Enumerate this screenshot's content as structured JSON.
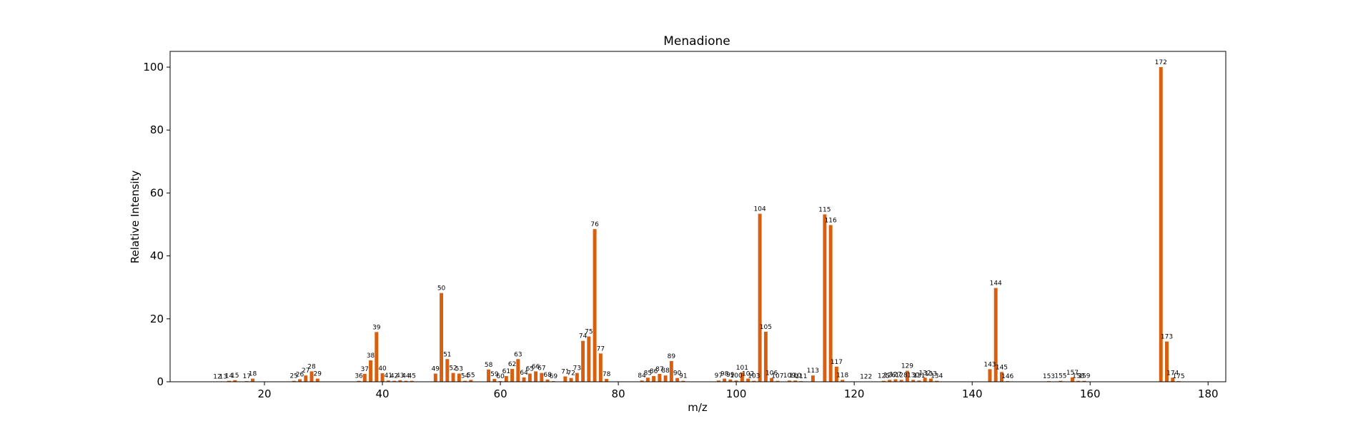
{
  "chart_data": {
    "type": "bar",
    "title": "Menadione",
    "xlabel": "m/z",
    "ylabel": "Relative Intensity",
    "xlim": [
      4,
      183
    ],
    "ylim": [
      0,
      105
    ],
    "xticks": [
      20,
      40,
      60,
      80,
      100,
      120,
      140,
      160,
      180
    ],
    "yticks": [
      0,
      20,
      40,
      60,
      80,
      100
    ],
    "grid": false,
    "bar_color": "#d95f0e",
    "x": [
      12,
      13,
      14,
      15,
      17,
      18,
      25,
      26,
      27,
      28,
      29,
      36,
      37,
      38,
      39,
      40,
      41,
      42,
      43,
      44,
      45,
      49,
      50,
      51,
      52,
      53,
      54,
      55,
      58,
      59,
      60,
      61,
      62,
      63,
      64,
      65,
      66,
      67,
      68,
      69,
      71,
      72,
      73,
      74,
      75,
      76,
      77,
      78,
      84,
      85,
      86,
      87,
      88,
      89,
      90,
      91,
      97,
      98,
      99,
      100,
      101,
      102,
      103,
      104,
      105,
      106,
      107,
      109,
      110,
      111,
      113,
      115,
      116,
      117,
      118,
      122,
      125,
      126,
      127,
      128,
      129,
      130,
      131,
      132,
      133,
      134,
      143,
      144,
      145,
      146,
      153,
      155,
      157,
      158,
      159,
      172,
      173,
      174,
      175
    ],
    "values": [
      0.1,
      0.1,
      0.3,
      0.5,
      0.2,
      1.0,
      0.3,
      0.8,
      2.0,
      3.3,
      1.0,
      0.3,
      2.5,
      6.8,
      15.8,
      2.7,
      0.4,
      0.3,
      0.5,
      0.3,
      0.3,
      2.6,
      28.2,
      7.2,
      2.8,
      2.6,
      0.3,
      0.6,
      3.9,
      0.9,
      0.2,
      1.8,
      4.1,
      7.2,
      1.4,
      2.6,
      3.3,
      2.8,
      0.7,
      0.2,
      1.7,
      1.2,
      2.8,
      13.0,
      14.4,
      48.5,
      9.0,
      0.9,
      0.4,
      1.3,
      1.8,
      2.5,
      2.0,
      6.6,
      1.2,
      0.3,
      0.4,
      1.0,
      0.7,
      0.4,
      3.0,
      1.0,
      0.3,
      53.4,
      15.9,
      1.2,
      0.3,
      0.4,
      0.4,
      0.2,
      2.0,
      53.2,
      49.8,
      4.8,
      0.6,
      0.1,
      0.3,
      0.6,
      0.8,
      0.6,
      3.5,
      0.6,
      0.4,
      1.3,
      1.0,
      0.3,
      4.0,
      29.8,
      3.1,
      0.2,
      0.2,
      0.3,
      1.4,
      0.3,
      0.3,
      100.0,
      12.8,
      1.3,
      0.2
    ]
  }
}
